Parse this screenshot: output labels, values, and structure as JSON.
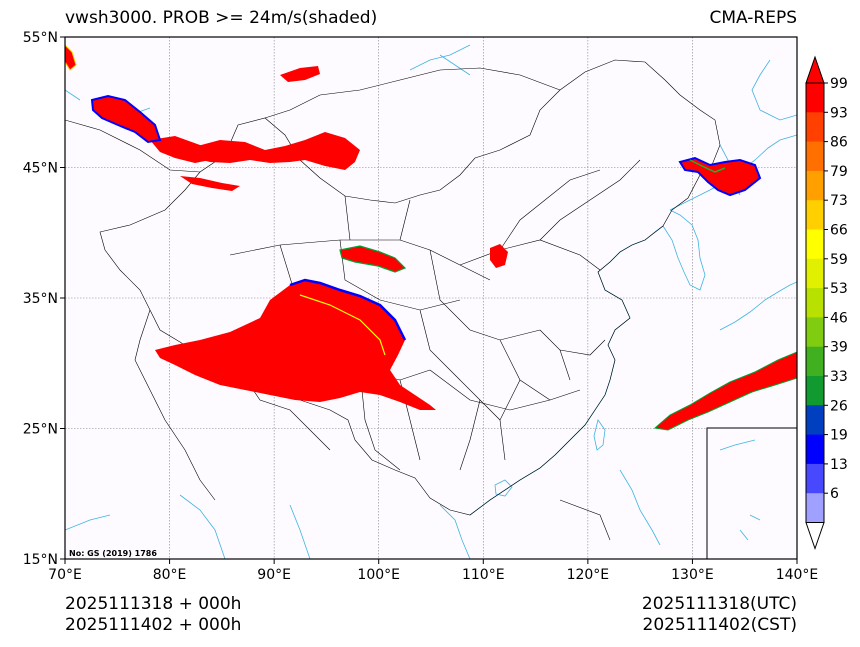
{
  "title": {
    "left": "vwsh3000. PROB >= 24m/s(shaded)",
    "right": "CMA-REPS"
  },
  "map": {
    "lat_labels": [
      "55°N",
      "45°N",
      "35°N",
      "25°N",
      "15°N"
    ],
    "lon_labels": [
      "70°E",
      "80°E",
      "90°E",
      "100°E",
      "110°E",
      "120°E",
      "130°E",
      "140°E"
    ],
    "extent": {
      "lon_min": 70,
      "lon_max": 140,
      "lat_min": 15,
      "lat_max": 55
    },
    "map_number": "No: GS (2019) 1786",
    "colors": {
      "coastline": "#3fb4e0",
      "border": "#000000",
      "shade_main": "#ff0000"
    }
  },
  "colorbar": {
    "labels": [
      "99",
      "93",
      "86",
      "79",
      "73",
      "66",
      "59",
      "53",
      "46",
      "39",
      "33",
      "26",
      "19",
      "13",
      "6"
    ],
    "colors": [
      "#ff0000",
      "#ff4000",
      "#ff7000",
      "#ff9f00",
      "#ffcf00",
      "#ffff00",
      "#e0f000",
      "#b8e000",
      "#80cc10",
      "#40b020",
      "#109a30",
      "#0040c0",
      "#0000ff",
      "#4848ff",
      "#a0a0ff"
    ],
    "top_arrow_color": "#ff0000",
    "bottom_arrow_color": "#ffffff"
  },
  "footer": {
    "left_line1": "2025111318  +  000h",
    "left_line2": "2025111402  +  000h",
    "right_line1": "2025111318(UTC)",
    "right_line2": "2025111402(CST)"
  }
}
